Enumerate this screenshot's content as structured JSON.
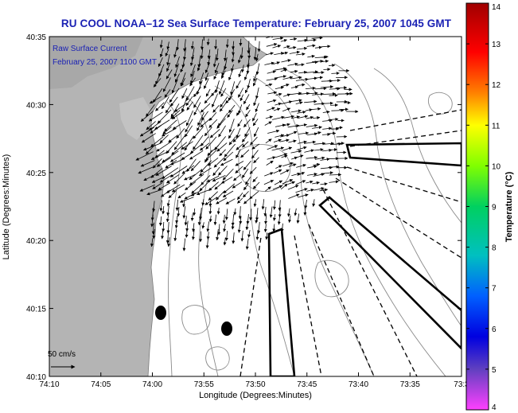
{
  "title": "RU COOL  NOAA–12  Sea Surface Temperature:  February 25, 2007 1045 GMT",
  "overlay": {
    "line1": "Raw Surface Current",
    "line2": "February 25, 2007 1100 GMT"
  },
  "scale": {
    "label": "50 cm/s"
  },
  "axes": {
    "xlabel": "Longitude (Degrees:Minutes)",
    "ylabel": "Latitude (Degrees:Minutes)",
    "xticks": [
      "74:10",
      "74:05",
      "74:00",
      "73:55",
      "73:50",
      "73:45",
      "73:40",
      "73:35",
      "73:3"
    ],
    "yticks": [
      "40:35",
      "40:30",
      "40:25",
      "40:20",
      "40:15",
      "40:10"
    ]
  },
  "colorbar": {
    "label": "Temperature (°C)",
    "ticks": [
      "14",
      "13",
      "12",
      "11",
      "10",
      "9",
      "8",
      "7",
      "6",
      "5",
      "4"
    ],
    "colors": [
      "#a00000",
      "#ff0000",
      "#ff8000",
      "#ffff00",
      "#80ff00",
      "#00d060",
      "#00c0c0",
      "#0060ff",
      "#0000e0",
      "#6040c0",
      "#ff40ff"
    ]
  },
  "colors": {
    "title": "#1b22b4",
    "land": "#b4b4b4",
    "ocean": "#ffffff",
    "contour": "#8a8a8a",
    "arrow": "#000000"
  }
}
